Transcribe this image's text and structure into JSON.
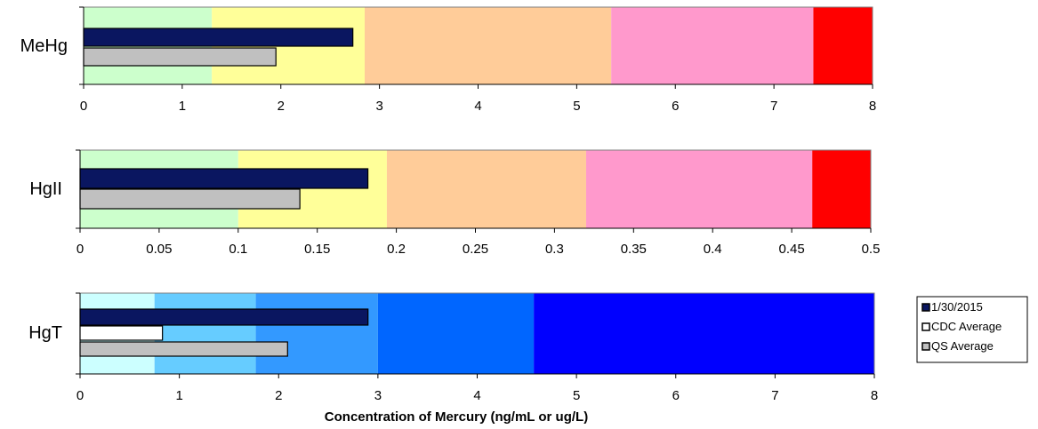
{
  "chart_data": {
    "type": "bar",
    "xlabel": "Concentration of Mercury (ng/mL or ug/L)",
    "legend_position": "bottom-right",
    "legend": [
      {
        "name": "1/30/2015",
        "color": "#0a1660"
      },
      {
        "name": "CDC Average",
        "color": "#ffffff"
      },
      {
        "name": "QS Average",
        "color": "#c0c0c0"
      }
    ],
    "panels": [
      {
        "label": "MeHg",
        "xlim": [
          0,
          8
        ],
        "ticks": [
          "0",
          "1",
          "2",
          "3",
          "4",
          "5",
          "6",
          "7",
          "8"
        ],
        "tick_values": [
          0,
          1,
          2,
          3,
          4,
          5,
          6,
          7,
          8
        ],
        "bands": [
          {
            "from": 0,
            "to": 1.3,
            "color": "#ccffcc"
          },
          {
            "from": 1.3,
            "to": 2.85,
            "color": "#ffff99"
          },
          {
            "from": 2.85,
            "to": 5.35,
            "color": "#ffcc99"
          },
          {
            "from": 5.35,
            "to": 7.4,
            "color": "#ff99cc"
          },
          {
            "from": 7.4,
            "to": 8,
            "color": "#ff0000"
          }
        ],
        "series": [
          {
            "name": "1/30/2015",
            "value": 2.73
          },
          {
            "name": "QS Average",
            "value": 1.95
          }
        ]
      },
      {
        "label": "HgII",
        "xlim": [
          0,
          0.5
        ],
        "ticks": [
          "0",
          "0.05",
          "0.1",
          "0.15",
          "0.2",
          "0.25",
          "0.3",
          "0.35",
          "0.4",
          "0.45",
          "0.5"
        ],
        "tick_values": [
          0,
          0.05,
          0.1,
          0.15,
          0.2,
          0.25,
          0.3,
          0.35,
          0.4,
          0.45,
          0.5
        ],
        "bands": [
          {
            "from": 0,
            "to": 0.1,
            "color": "#ccffcc"
          },
          {
            "from": 0.1,
            "to": 0.194,
            "color": "#ffff99"
          },
          {
            "from": 0.194,
            "to": 0.32,
            "color": "#ffcc99"
          },
          {
            "from": 0.32,
            "to": 0.463,
            "color": "#ff99cc"
          },
          {
            "from": 0.463,
            "to": 0.5,
            "color": "#ff0000"
          }
        ],
        "series": [
          {
            "name": "1/30/2015",
            "value": 0.182
          },
          {
            "name": "QS Average",
            "value": 0.139
          }
        ]
      },
      {
        "label": "HgT",
        "xlim": [
          0,
          8
        ],
        "ticks": [
          "0",
          "1",
          "2",
          "3",
          "4",
          "5",
          "6",
          "7",
          "8"
        ],
        "tick_values": [
          0,
          1,
          2,
          3,
          4,
          5,
          6,
          7,
          8
        ],
        "bands": [
          {
            "from": 0,
            "to": 0.75,
            "color": "#ccffff"
          },
          {
            "from": 0.75,
            "to": 1.77,
            "color": "#66ccff"
          },
          {
            "from": 1.77,
            "to": 3.0,
            "color": "#3399ff"
          },
          {
            "from": 3.0,
            "to": 4.57,
            "color": "#0066ff"
          },
          {
            "from": 4.57,
            "to": 8,
            "color": "#0000ff"
          }
        ],
        "series": [
          {
            "name": "1/30/2015",
            "value": 2.9
          },
          {
            "name": "CDC Average",
            "value": 0.83
          },
          {
            "name": "QS Average",
            "value": 2.09
          }
        ]
      }
    ]
  }
}
